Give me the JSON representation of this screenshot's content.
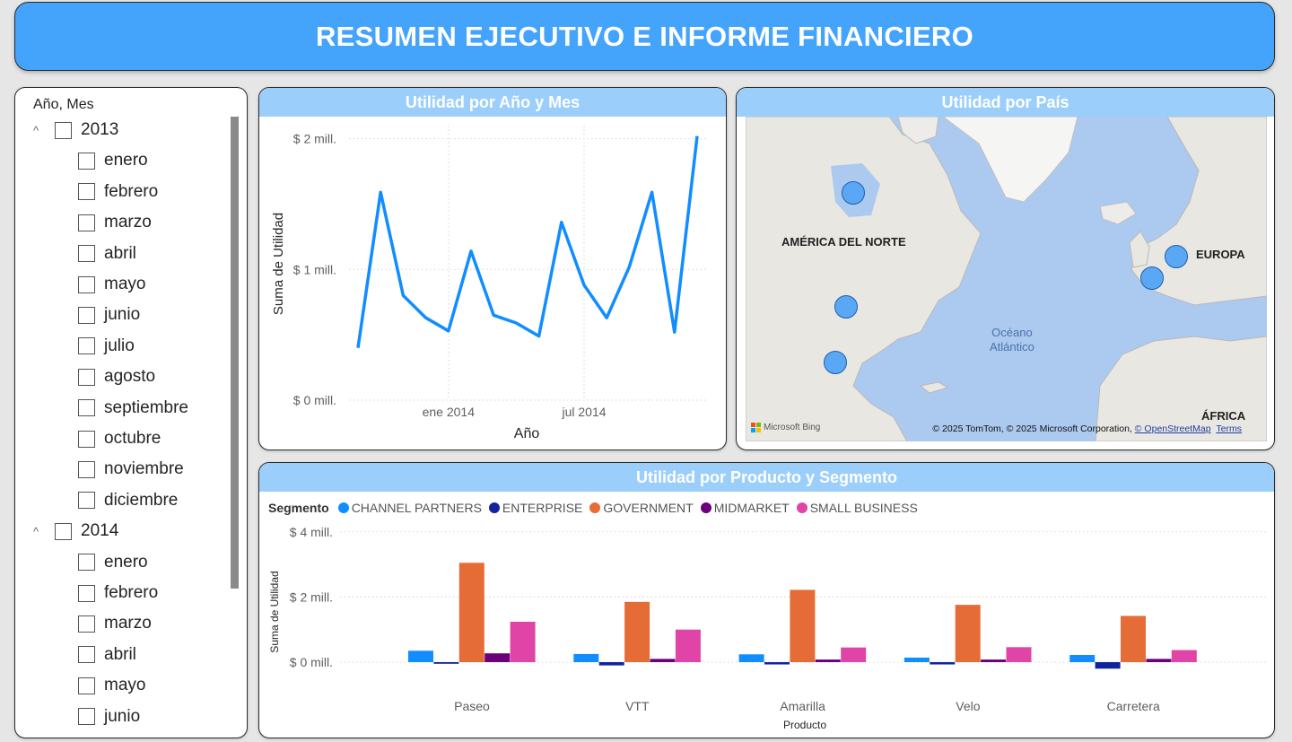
{
  "header": {
    "title": "RESUMEN EJECUTIVO E INFORME FINANCIERO"
  },
  "slicer": {
    "title": "Año, Mes",
    "items": [
      {
        "label": "2013",
        "level": 0
      },
      {
        "label": "enero",
        "level": 1
      },
      {
        "label": "febrero",
        "level": 1
      },
      {
        "label": "marzo",
        "level": 1
      },
      {
        "label": "abril",
        "level": 1
      },
      {
        "label": "mayo",
        "level": 1
      },
      {
        "label": "junio",
        "level": 1
      },
      {
        "label": "julio",
        "level": 1
      },
      {
        "label": "agosto",
        "level": 1
      },
      {
        "label": "septiembre",
        "level": 1
      },
      {
        "label": "octubre",
        "level": 1
      },
      {
        "label": "noviembre",
        "level": 1
      },
      {
        "label": "diciembre",
        "level": 1
      },
      {
        "label": "2014",
        "level": 0
      },
      {
        "label": "enero",
        "level": 1
      },
      {
        "label": "febrero",
        "level": 1
      },
      {
        "label": "marzo",
        "level": 1
      },
      {
        "label": "abril",
        "level": 1
      },
      {
        "label": "mayo",
        "level": 1
      },
      {
        "label": "junio",
        "level": 1
      }
    ]
  },
  "line_chart": {
    "title": "Utilidad por Año y Mes",
    "chart_data": {
      "type": "line",
      "title": "Utilidad por Año y Mes",
      "xlabel": "Año",
      "ylabel": "Suma de Utilidad",
      "x": [
        "2013-09",
        "2013-10",
        "2013-11",
        "2013-12",
        "2014-01",
        "2014-02",
        "2014-03",
        "2014-04",
        "2014-05",
        "2014-06",
        "2014-07",
        "2014-08",
        "2014-09",
        "2014-10",
        "2014-11",
        "2014-12"
      ],
      "values": [
        0.4,
        1.59,
        0.8,
        0.63,
        0.53,
        1.14,
        0.65,
        0.59,
        0.49,
        1.36,
        0.88,
        0.63,
        1.02,
        1.59,
        0.52,
        2.02
      ],
      "value_unit": "mill. $",
      "yticks": [
        "$ 0 mill.",
        "$ 1 mill.",
        "$ 2 mill."
      ],
      "ytick_values": [
        0,
        1,
        2
      ],
      "xticks": [
        "ene 2014",
        "jul 2014"
      ],
      "xtick_values": [
        "2014-01",
        "2014-07"
      ],
      "ylim": [
        0,
        2.1
      ],
      "color": "#118DFF",
      "grid": true
    }
  },
  "map": {
    "title": "Utilidad por País",
    "labels": {
      "north_america": "AMÉRICA DEL NORTE",
      "europe": "EUROPA",
      "africa": "ÁFRICA",
      "ocean_1": "Océano",
      "ocean_2": "Atlántico"
    },
    "bubble_color": "#5AA8F5",
    "bing_text": "Microsoft Bing",
    "attribution_prefix": "© 2025 TomTom, © 2025 Microsoft Corporation, ",
    "attribution_link": "© OpenStreetMap",
    "terms": "Terms"
  },
  "bar_chart": {
    "title": "Utilidad por Producto y Segmento",
    "legend_title": "Segmento",
    "chart_data": {
      "type": "bar",
      "title": "Utilidad por Producto y Segmento",
      "xlabel": "Producto",
      "ylabel": "Suma de Utilidad",
      "categories": [
        "Paseo",
        "VTT",
        "Amarilla",
        "Velo",
        "Carretera"
      ],
      "series": [
        {
          "name": "CHANNEL PARTNERS",
          "color": "#118DFF",
          "values": [
            0.35,
            0.25,
            0.24,
            0.14,
            0.22
          ]
        },
        {
          "name": "ENTERPRISE",
          "color": "#12239E",
          "values": [
            -0.05,
            -0.1,
            -0.07,
            -0.07,
            -0.2
          ]
        },
        {
          "name": "GOVERNMENT",
          "color": "#E66C37",
          "values": [
            3.05,
            1.85,
            2.22,
            1.76,
            1.42
          ]
        },
        {
          "name": "MIDMARKET",
          "color": "#6B007B",
          "values": [
            0.27,
            0.1,
            0.08,
            0.08,
            0.1
          ]
        },
        {
          "name": "SMALL BUSINESS",
          "color": "#E044A7",
          "values": [
            1.24,
            1.0,
            0.45,
            0.46,
            0.37
          ]
        }
      ],
      "value_unit": "mill. $",
      "yticks": [
        "$ 0 mill.",
        "$ 2 mill.",
        "$ 4 mill."
      ],
      "ytick_values": [
        0,
        2,
        4
      ],
      "ylim": [
        -0.3,
        4
      ],
      "legend": "top-left",
      "grid": true
    }
  }
}
